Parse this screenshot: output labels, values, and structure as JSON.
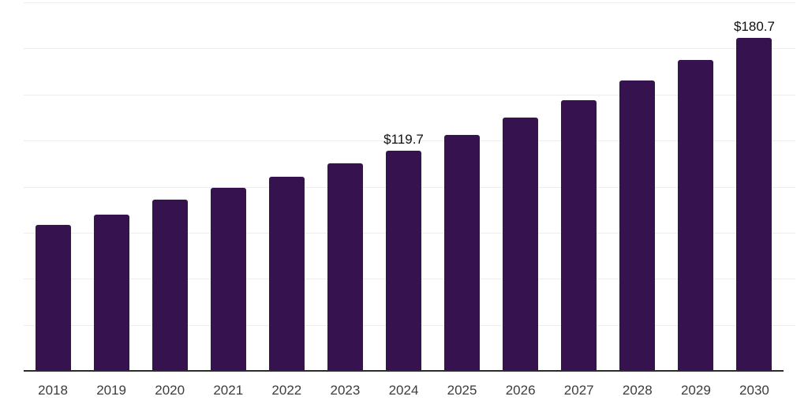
{
  "chart_data": {
    "type": "bar",
    "categories": [
      "2018",
      "2019",
      "2020",
      "2021",
      "2022",
      "2023",
      "2024",
      "2025",
      "2026",
      "2027",
      "2028",
      "2029",
      "2030"
    ],
    "values": [
      79.3,
      84.6,
      92.9,
      99.3,
      105.3,
      112.8,
      119.7,
      128.2,
      137.3,
      147.1,
      157.5,
      168.7,
      180.7
    ],
    "point_labels": {
      "2024": "$119.7",
      "2030": "$180.7"
    },
    "title": "",
    "xlabel": "",
    "ylabel": "",
    "ylim": [
      0,
      200
    ],
    "ytick_step": 25,
    "grid": "horizontal-only",
    "legend": "none",
    "colors": {
      "bar": "#36134e",
      "gridline": "#ededed",
      "axis_line": "#2b2b2b",
      "x_tick_label": "#3d3d3d",
      "data_label": "#111111",
      "background": "#ffffff"
    }
  }
}
